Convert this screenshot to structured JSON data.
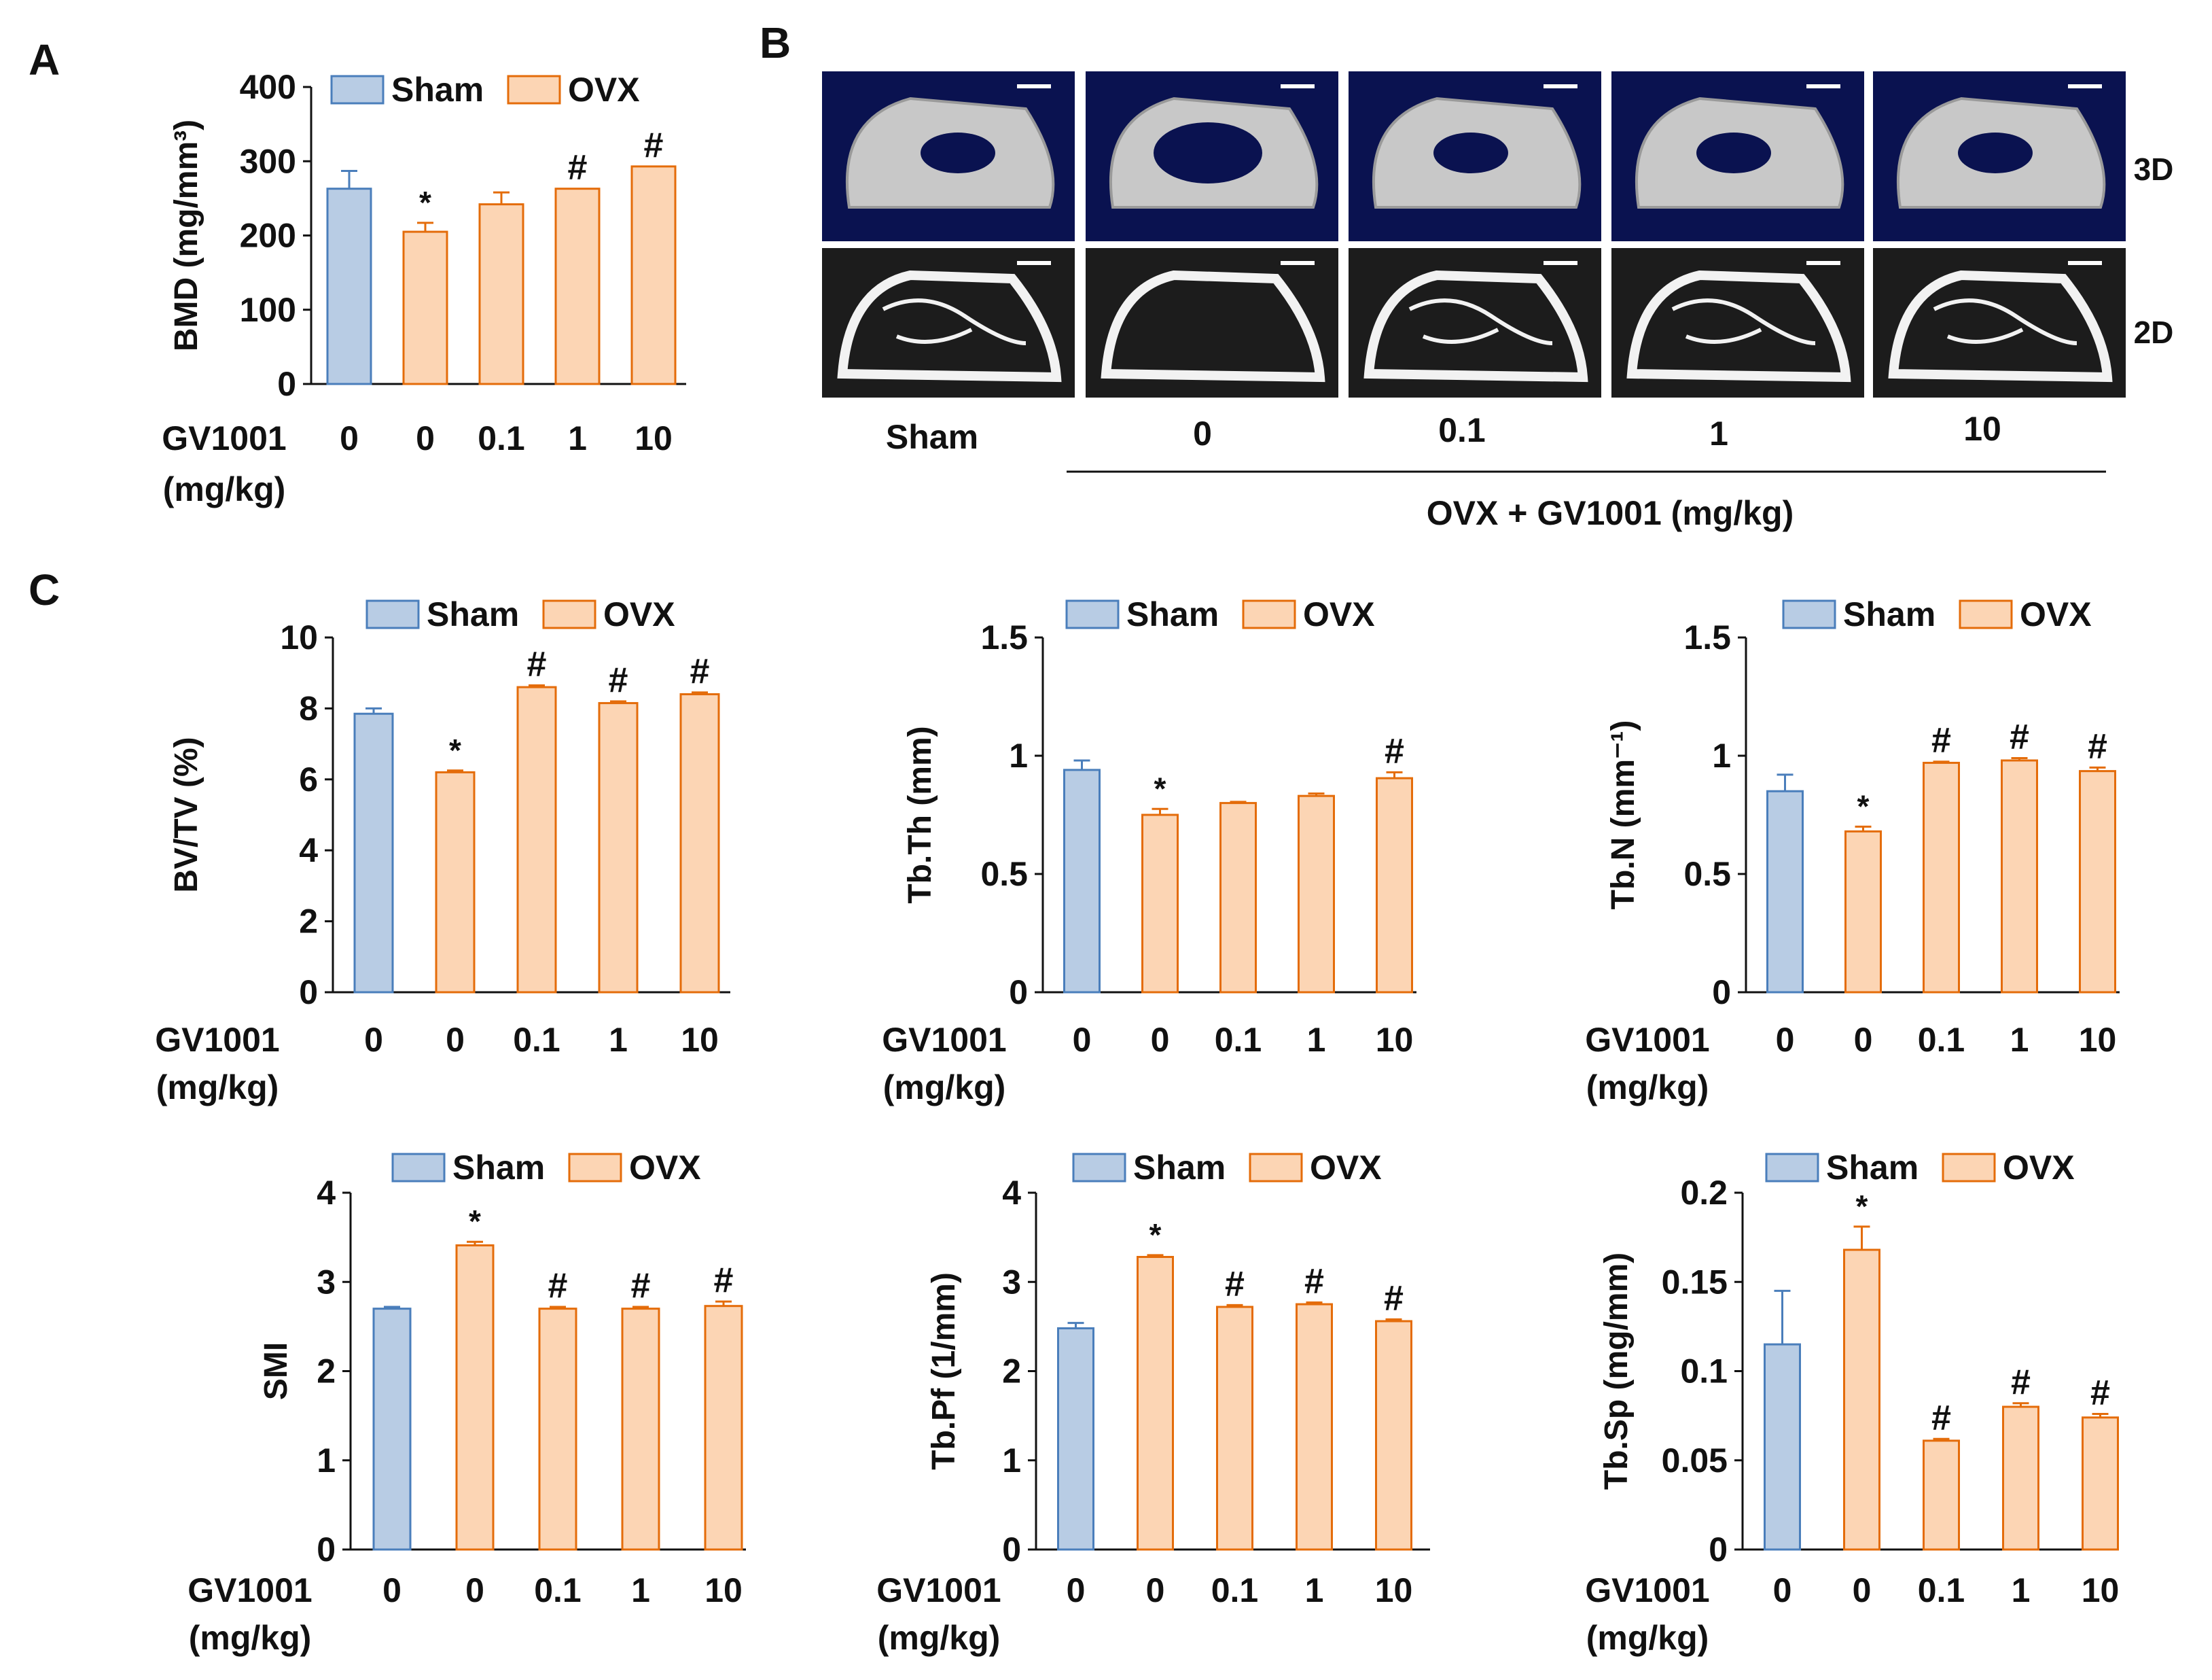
{
  "panel_labels": {
    "a": "A",
    "b": "B",
    "c": "C"
  },
  "colors": {
    "sham_fill": "#b8cce4",
    "sham_stroke": "#4a7ebb",
    "ovx_fill": "#fcd5b4",
    "ovx_stroke": "#e46c0a",
    "axis": "#111111",
    "scan_bg_3d": "#0a1250",
    "scan_bg_2d": "#1c1c1c",
    "bone_3d": "#c8c8c8",
    "bone_2d": "#f2f2f2"
  },
  "legend": {
    "sham": "Sham",
    "ovx": "OVX"
  },
  "x_title": {
    "line1": "GV1001",
    "line2": "(mg/kg)"
  },
  "panel_b": {
    "row_labels": [
      "3D",
      "2D"
    ],
    "column_labels": [
      "Sham",
      "0",
      "0.1",
      "1",
      "10"
    ],
    "group_caption": "OVX + GV1001 (mg/kg)"
  },
  "chart_data": [
    {
      "id": "bmd",
      "panel": "A",
      "type": "bar",
      "categories": [
        "0",
        "0",
        "0.1",
        "1",
        "10"
      ],
      "groups": [
        "Sham",
        "OVX",
        "OVX",
        "OVX",
        "OVX"
      ],
      "values": [
        263,
        205,
        242,
        263,
        293
      ],
      "errors": [
        24,
        12,
        16,
        0,
        0
      ],
      "markers": [
        "",
        "*",
        "",
        "#",
        "#"
      ],
      "ylabel": "BMD (mg/mm³)",
      "ylim": [
        0,
        400
      ],
      "yticks": [
        0,
        100,
        200,
        300,
        400
      ],
      "ytick_labels": [
        "0",
        "100",
        "200",
        "300",
        "400"
      ]
    },
    {
      "id": "bvtv",
      "panel": "C",
      "type": "bar",
      "categories": [
        "0",
        "0",
        "0.1",
        "1",
        "10"
      ],
      "groups": [
        "Sham",
        "OVX",
        "OVX",
        "OVX",
        "OVX"
      ],
      "values": [
        7.85,
        6.2,
        8.6,
        8.15,
        8.4
      ],
      "errors": [
        0.15,
        0.05,
        0.05,
        0.05,
        0.05
      ],
      "markers": [
        "",
        "*",
        "#",
        "#",
        "#"
      ],
      "ylabel": "BV/TV (%)",
      "ylim": [
        0,
        10
      ],
      "yticks": [
        0,
        2,
        4,
        6,
        8,
        10
      ],
      "ytick_labels": [
        "0",
        "2",
        "4",
        "6",
        "8",
        "10"
      ]
    },
    {
      "id": "tbth",
      "panel": "C",
      "type": "bar",
      "categories": [
        "0",
        "0",
        "0.1",
        "1",
        "10"
      ],
      "groups": [
        "Sham",
        "OVX",
        "OVX",
        "OVX",
        "OVX"
      ],
      "values": [
        0.94,
        0.75,
        0.8,
        0.83,
        0.905
      ],
      "errors": [
        0.04,
        0.025,
        0.005,
        0.01,
        0.025
      ],
      "markers": [
        "",
        "*",
        "",
        "",
        "#"
      ],
      "ylabel": "Tb.Th (mm)",
      "ylim": [
        0,
        1.5
      ],
      "yticks": [
        0,
        0.5,
        1,
        1.5
      ],
      "ytick_labels": [
        "0",
        "0.5",
        "1",
        "1.5"
      ]
    },
    {
      "id": "tbn",
      "panel": "C",
      "type": "bar",
      "categories": [
        "0",
        "0",
        "0.1",
        "1",
        "10"
      ],
      "groups": [
        "Sham",
        "OVX",
        "OVX",
        "OVX",
        "OVX"
      ],
      "values": [
        0.85,
        0.68,
        0.97,
        0.98,
        0.935
      ],
      "errors": [
        0.07,
        0.02,
        0.005,
        0.01,
        0.015
      ],
      "markers": [
        "",
        "*",
        "#",
        "#",
        "#"
      ],
      "ylabel": "Tb.N (mm⁻¹)",
      "ylim": [
        0,
        1.5
      ],
      "yticks": [
        0,
        0.5,
        1,
        1.5
      ],
      "ytick_labels": [
        "0",
        "0.5",
        "1",
        "1.5"
      ]
    },
    {
      "id": "smi",
      "panel": "C",
      "type": "bar",
      "categories": [
        "0",
        "0",
        "0.1",
        "1",
        "10"
      ],
      "groups": [
        "Sham",
        "OVX",
        "OVX",
        "OVX",
        "OVX"
      ],
      "values": [
        2.7,
        3.41,
        2.7,
        2.7,
        2.73
      ],
      "errors": [
        0.02,
        0.04,
        0.02,
        0.02,
        0.05
      ],
      "markers": [
        "",
        "*",
        "#",
        "#",
        "#"
      ],
      "ylabel": "SMI",
      "ylim": [
        0,
        4
      ],
      "yticks": [
        0,
        1,
        2,
        3,
        4
      ],
      "ytick_labels": [
        "0",
        "1",
        "2",
        "3",
        "4"
      ]
    },
    {
      "id": "tbpf",
      "panel": "C",
      "type": "bar",
      "categories": [
        "0",
        "0",
        "0.1",
        "1",
        "10"
      ],
      "groups": [
        "Sham",
        "OVX",
        "OVX",
        "OVX",
        "OVX"
      ],
      "values": [
        2.48,
        3.28,
        2.72,
        2.75,
        2.56
      ],
      "errors": [
        0.06,
        0.02,
        0.02,
        0.02,
        0.02
      ],
      "markers": [
        "",
        "*",
        "#",
        "#",
        "#"
      ],
      "ylabel": "Tb.Pf (1/mm)",
      "ylim": [
        0,
        4
      ],
      "yticks": [
        0,
        1,
        2,
        3,
        4
      ],
      "ytick_labels": [
        "0",
        "1",
        "2",
        "3",
        "4"
      ]
    },
    {
      "id": "tbsp",
      "panel": "C",
      "type": "bar",
      "categories": [
        "0",
        "0",
        "0.1",
        "1",
        "10"
      ],
      "groups": [
        "Sham",
        "OVX",
        "OVX",
        "OVX",
        "OVX"
      ],
      "values": [
        0.115,
        0.168,
        0.061,
        0.08,
        0.074
      ],
      "errors": [
        0.03,
        0.013,
        0.001,
        0.002,
        0.002
      ],
      "markers": [
        "",
        "*",
        "#",
        "#",
        "#"
      ],
      "ylabel": "Tb.Sp (mg/mm)",
      "ylim": [
        0,
        0.2
      ],
      "yticks": [
        0,
        0.05,
        0.1,
        0.15,
        0.2
      ],
      "ytick_labels": [
        "0",
        "0.05",
        "0.1",
        "0.15",
        "0.2"
      ]
    }
  ]
}
